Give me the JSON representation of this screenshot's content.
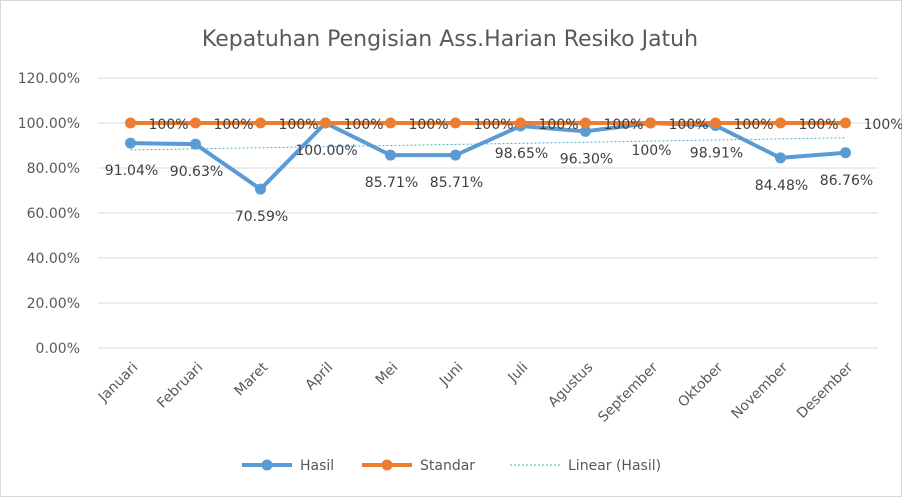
{
  "chart_data": {
    "type": "line",
    "title": "Kepatuhan Pengisian Ass.Harian Resiko Jatuh",
    "categories": [
      "Januari",
      "Februari",
      "Maret",
      "April",
      "Mei",
      "Juni",
      "Juli",
      "Agustus",
      "September",
      "Oktober",
      "November",
      "Desember"
    ],
    "ylim": [
      0,
      120
    ],
    "yticks": [
      "0.00%",
      "20.00%",
      "40.00%",
      "60.00%",
      "80.00%",
      "100.00%",
      "120.00%"
    ],
    "ytick_values": [
      0,
      20,
      40,
      60,
      80,
      100,
      120
    ],
    "grid": true,
    "legend_position": "bottom",
    "series": [
      {
        "name": "Hasil",
        "color": "#5b9bd5",
        "values": [
          91.04,
          90.63,
          70.59,
          100,
          85.71,
          85.71,
          98.65,
          96.3,
          100,
          98.91,
          84.48,
          86.76
        ],
        "labels": [
          "91.04%",
          "90.63%",
          "70.59%",
          "100.00%",
          "85.71%",
          "85.71%",
          "98.65%",
          "96.30%",
          "100%",
          "98.91%",
          "84.48%",
          "86.76%"
        ]
      },
      {
        "name": "Standar",
        "color": "#ed7d31",
        "values": [
          100,
          100,
          100,
          100,
          100,
          100,
          100,
          100,
          100,
          100,
          100,
          100
        ],
        "labels": [
          "100%",
          "100%",
          "100%",
          "100%",
          "100%",
          "100%",
          "100%",
          "100%",
          "100%",
          "100%",
          "100%",
          "100%"
        ]
      }
    ],
    "trendline": {
      "name": "Linear (Hasil)",
      "type": "linear",
      "of_series": "Hasil",
      "color": "#4bacc6"
    }
  }
}
